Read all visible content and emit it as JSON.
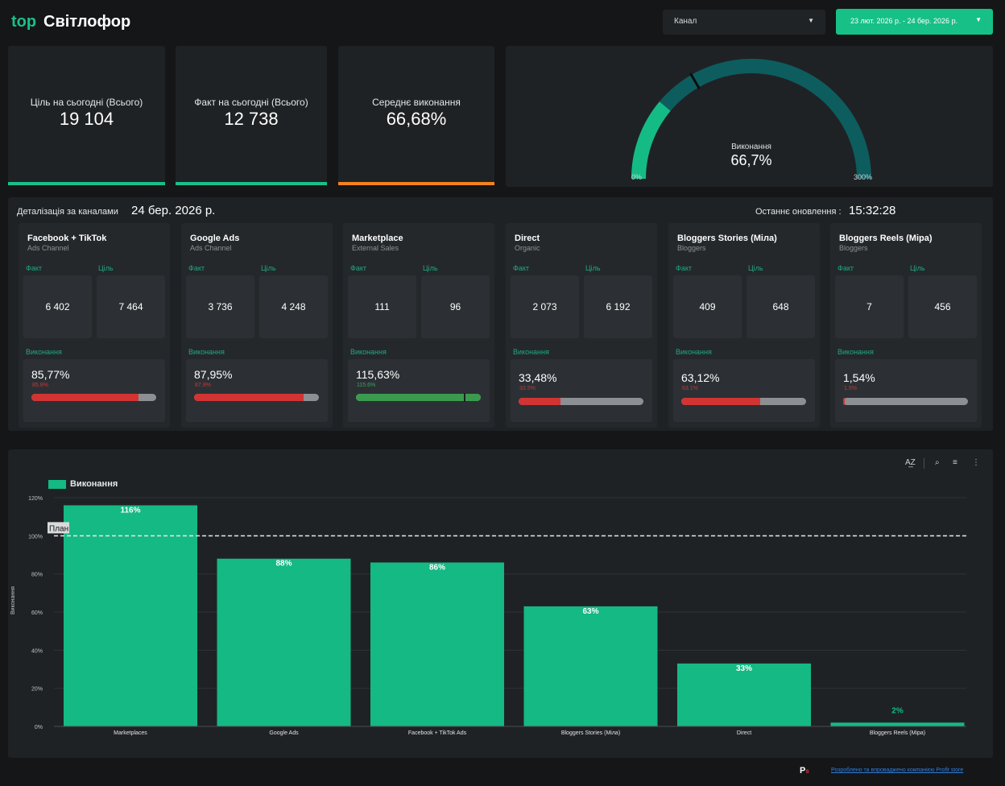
{
  "header": {
    "logo": "top",
    "title": "Світлофор",
    "channel_dropdown": "Канал",
    "date_range": "23 лют. 2026 р. - 24 бер. 2026 р."
  },
  "kpis": [
    {
      "label": "Ціль на сьогодні (Всього)",
      "value": "19 104",
      "color": "#18c08a"
    },
    {
      "label": "Факт на сьогодні (Всього)",
      "value": "12 738",
      "color": "#18c08a"
    },
    {
      "label": "Середнє виконання",
      "value": "66,68%",
      "color": "#f5821f"
    }
  ],
  "gauge": {
    "label": "Виконання",
    "value_text": "66,7%",
    "value": 66.7,
    "min_label": "0%",
    "max_label": "300%",
    "min": 0,
    "max": 300,
    "target": 100,
    "fill_color": "#15bb85",
    "track_color": "#0d5d5f"
  },
  "detail": {
    "title": "Деталізація за каналами",
    "date": "24 бер. 2026 р.",
    "updated_label": "Останнє оновлення :",
    "updated_time": "15:32:28",
    "fact_label": "Факт",
    "target_label": "Ціль",
    "exec_label": "Виконання",
    "channels": [
      {
        "name": "Facebook + TikTok",
        "sub": "Ads Channel",
        "fact": "6 402",
        "target": "7 464",
        "pct": "85,77%",
        "small": "85.8%",
        "ratio": 0.858,
        "color": "#d23434"
      },
      {
        "name": "Google Ads",
        "sub": "Ads Channel",
        "fact": "3 736",
        "target": "4 248",
        "pct": "87,95%",
        "small": "87.9%",
        "ratio": 0.879,
        "color": "#d23434"
      },
      {
        "name": "Marketplace",
        "sub": "External Sales",
        "fact": "111",
        "target": "96",
        "pct": "115,63%",
        "small": "115.6%",
        "ratio": 1.156,
        "color": "#3a9b4f"
      },
      {
        "name": "Direct",
        "sub": "Organic",
        "fact": "2 073",
        "target": "6 192",
        "pct": "33,48%",
        "small": "33.5%",
        "ratio": 0.335,
        "color": "#d23434"
      },
      {
        "name": "Bloggers Stories (Міла)",
        "sub": "Bloggers",
        "fact": "409",
        "target": "648",
        "pct": "63,12%",
        "small": "63.1%",
        "ratio": 0.631,
        "color": "#d23434"
      },
      {
        "name": "Bloggers Reels (Міра)",
        "sub": "Bloggers",
        "fact": "7",
        "target": "456",
        "pct": "1,54%",
        "small": "1.5%",
        "ratio": 0.015,
        "color": "#d23434"
      }
    ]
  },
  "chart_toolbar": {
    "sort_icon": "sort-az-icon",
    "zoom_icon": "zoom-icon",
    "filter_icon": "filter-icon",
    "more_icon": "more-vert-icon"
  },
  "chart_data": {
    "type": "bar",
    "categories": [
      "Marketplaces",
      "Google Ads",
      "Facebook + TikTok Ads",
      "Bloggers Stories (Міла)",
      "Direct",
      "Bloggers Reels (Міра)"
    ],
    "series": [
      {
        "name": "Виконання",
        "values": [
          116,
          88,
          86,
          63,
          33,
          2
        ]
      }
    ],
    "data_labels": [
      "116%",
      "88%",
      "86%",
      "63%",
      "33%",
      "2%"
    ],
    "ylabel": "Виконання",
    "ylim": [
      0,
      120
    ],
    "yticks": [
      "0%",
      "20%",
      "40%",
      "60%",
      "80%",
      "100%",
      "120%"
    ],
    "reference_line": {
      "value": 100,
      "label": "План"
    },
    "legend": "top-left",
    "grid": true,
    "bar_color": "#15b983"
  },
  "footer": {
    "logo": "P",
    "logo_sub": "s",
    "credit": "Розроблено та впроваджено компанією Profit store"
  }
}
